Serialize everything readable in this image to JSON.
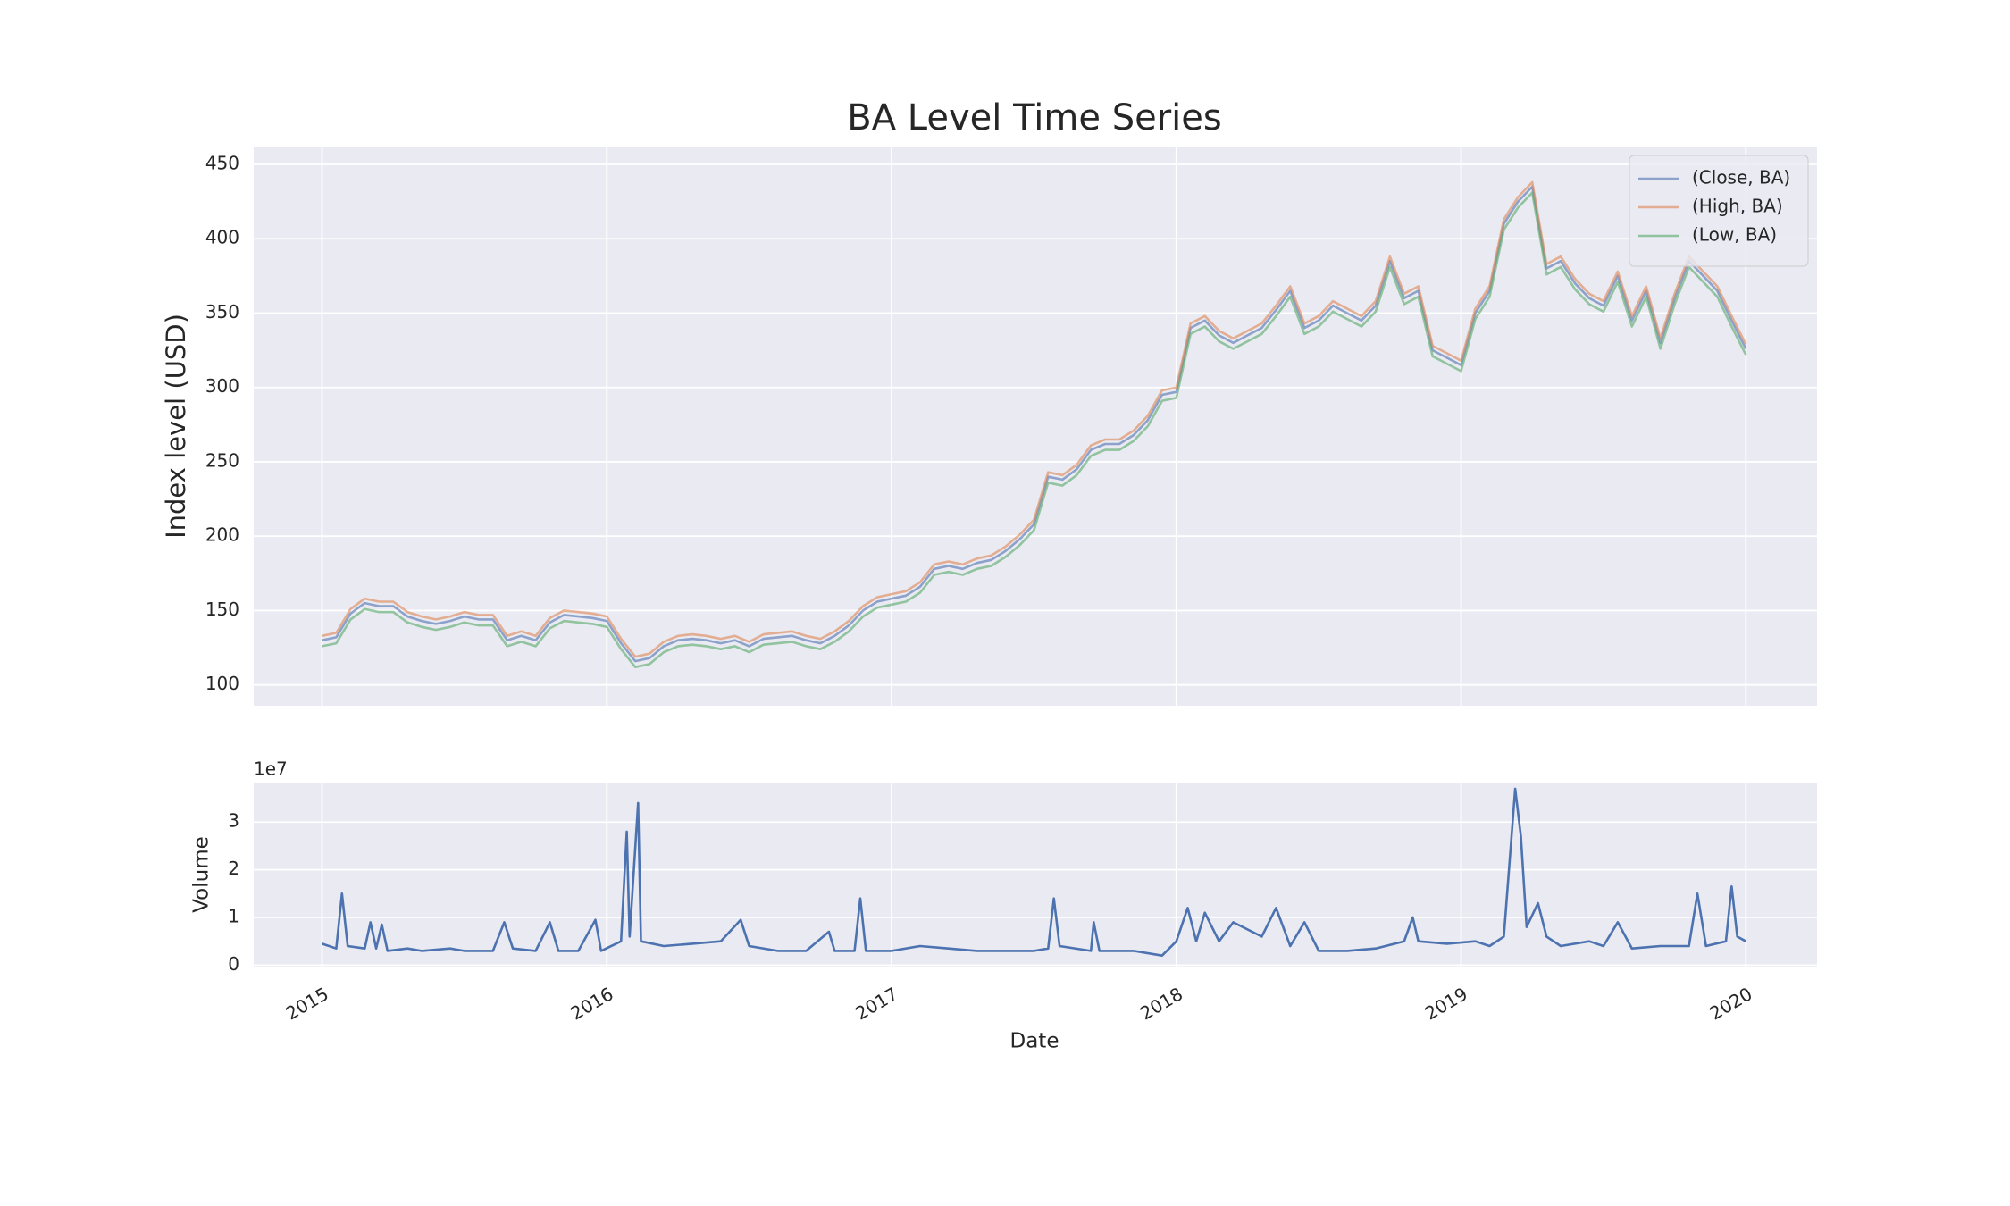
{
  "chart_data": [
    {
      "type": "line",
      "title": "BA Level Time Series",
      "ylabel": "Index level (USD)",
      "legend": "upper right",
      "grid": true,
      "alpha": 0.6,
      "xlim": [
        2014.76,
        2020.25
      ],
      "xticks": [
        2015,
        2016,
        2017,
        2018,
        2019,
        2020
      ],
      "show_xtick_labels": false,
      "ylim": [
        86,
        462
      ],
      "yticks": [
        100,
        150,
        200,
        250,
        300,
        350,
        400,
        450
      ],
      "x": [
        2015,
        2015.05,
        2015.1,
        2015.15,
        2015.2,
        2015.25,
        2015.3,
        2015.35,
        2015.4,
        2015.45,
        2015.5,
        2015.55,
        2015.6,
        2015.65,
        2015.7,
        2015.75,
        2015.8,
        2015.85,
        2015.9,
        2015.95,
        2016,
        2016.05,
        2016.1,
        2016.15,
        2016.2,
        2016.25,
        2016.3,
        2016.35,
        2016.4,
        2016.45,
        2016.5,
        2016.55,
        2016.6,
        2016.65,
        2016.7,
        2016.75,
        2016.8,
        2016.85,
        2016.9,
        2016.95,
        2017,
        2017.05,
        2017.1,
        2017.15,
        2017.2,
        2017.25,
        2017.3,
        2017.35,
        2017.4,
        2017.45,
        2017.5,
        2017.55,
        2017.6,
        2017.65,
        2017.7,
        2017.75,
        2017.8,
        2017.85,
        2017.9,
        2017.95,
        2018,
        2018.05,
        2018.1,
        2018.15,
        2018.2,
        2018.25,
        2018.3,
        2018.35,
        2018.4,
        2018.45,
        2018.5,
        2018.55,
        2018.6,
        2018.65,
        2018.7,
        2018.75,
        2018.8,
        2018.85,
        2018.9,
        2018.95,
        2019,
        2019.05,
        2019.1,
        2019.15,
        2019.2,
        2019.25,
        2019.3,
        2019.35,
        2019.4,
        2019.45,
        2019.5,
        2019.55,
        2019.6,
        2019.65,
        2019.7,
        2019.75,
        2019.8,
        2019.85,
        2019.9,
        2019.95,
        2020
      ],
      "series": [
        {
          "name": "(Close, BA)",
          "color": "#4c72b0",
          "values": [
            130,
            132,
            148,
            155,
            153,
            153,
            146,
            143,
            141,
            143,
            146,
            144,
            144,
            130,
            133,
            130,
            142,
            147,
            146,
            145,
            143,
            128,
            116,
            118,
            126,
            130,
            131,
            130,
            128,
            130,
            126,
            131,
            132,
            133,
            130,
            128,
            133,
            140,
            150,
            156,
            158,
            160,
            166,
            178,
            180,
            178,
            182,
            184,
            190,
            198,
            208,
            240,
            238,
            245,
            258,
            262,
            262,
            268,
            278,
            295,
            297,
            340,
            345,
            335,
            330,
            335,
            340,
            352,
            365,
            340,
            345,
            355,
            350,
            345,
            355,
            385,
            360,
            365,
            325,
            320,
            315,
            350,
            365,
            410,
            425,
            435,
            380,
            385,
            370,
            360,
            355,
            375,
            345,
            365,
            330,
            360,
            385,
            375,
            365,
            345,
            326
          ]
        },
        {
          "name": "(High, BA)",
          "color": "#dd8452",
          "values": [
            133,
            135,
            151,
            158,
            156,
            156,
            149,
            146,
            144,
            146,
            149,
            147,
            147,
            133,
            136,
            133,
            145,
            150,
            149,
            148,
            146,
            131,
            119,
            121,
            129,
            133,
            134,
            133,
            131,
            133,
            129,
            134,
            135,
            136,
            133,
            131,
            136,
            143,
            153,
            159,
            161,
            163,
            169,
            181,
            183,
            181,
            185,
            187,
            193,
            201,
            211,
            243,
            241,
            248,
            261,
            265,
            265,
            271,
            281,
            298,
            300,
            343,
            348,
            338,
            333,
            338,
            343,
            355,
            368,
            343,
            348,
            358,
            353,
            348,
            358,
            388,
            363,
            368,
            328,
            323,
            318,
            353,
            368,
            413,
            428,
            438,
            383,
            388,
            373,
            363,
            358,
            378,
            348,
            368,
            333,
            363,
            388,
            378,
            368,
            348,
            329
          ]
        },
        {
          "name": "(Low, BA)",
          "color": "#55a868",
          "values": [
            126,
            128,
            144,
            151,
            149,
            149,
            142,
            139,
            137,
            139,
            142,
            140,
            140,
            126,
            129,
            126,
            138,
            143,
            142,
            141,
            139,
            124,
            112,
            114,
            122,
            126,
            127,
            126,
            124,
            126,
            122,
            127,
            128,
            129,
            126,
            124,
            129,
            136,
            146,
            152,
            154,
            156,
            162,
            174,
            176,
            174,
            178,
            180,
            186,
            194,
            204,
            236,
            234,
            241,
            254,
            258,
            258,
            264,
            274,
            291,
            293,
            336,
            341,
            331,
            326,
            331,
            336,
            348,
            361,
            336,
            341,
            351,
            346,
            341,
            351,
            381,
            356,
            361,
            321,
            316,
            311,
            346,
            361,
            406,
            421,
            431,
            376,
            381,
            366,
            356,
            351,
            371,
            341,
            361,
            326,
            356,
            381,
            371,
            361,
            341,
            322
          ]
        }
      ]
    },
    {
      "type": "line",
      "ylabel": "Volume",
      "xlabel": "Date",
      "offset_label": "1e7",
      "grid": true,
      "color": "#4c72b0",
      "xlim": [
        2014.76,
        2020.25
      ],
      "xticks": [
        2015,
        2016,
        2017,
        2018,
        2019,
        2020
      ],
      "show_xtick_labels": true,
      "ylim": [
        -300000,
        38100000
      ],
      "yticks": [
        0,
        {
          "value": 10000000,
          "label": "1"
        },
        {
          "value": 20000000,
          "label": "2"
        },
        {
          "value": 30000000,
          "label": "3"
        }
      ],
      "x": [
        2015,
        2015.05,
        2015.07,
        2015.09,
        2015.15,
        2015.17,
        2015.19,
        2015.21,
        2015.23,
        2015.3,
        2015.35,
        2015.45,
        2015.5,
        2015.6,
        2015.64,
        2015.67,
        2015.75,
        2015.8,
        2015.83,
        2015.9,
        2015.96,
        2015.98,
        2016.05,
        2016.07,
        2016.08,
        2016.11,
        2016.12,
        2016.2,
        2016.3,
        2016.4,
        2016.47,
        2016.5,
        2016.6,
        2016.7,
        2016.78,
        2016.8,
        2016.87,
        2016.89,
        2016.91,
        2017,
        2017.1,
        2017.2,
        2017.3,
        2017.4,
        2017.5,
        2017.55,
        2017.57,
        2017.59,
        2017.7,
        2017.71,
        2017.73,
        2017.85,
        2017.95,
        2018,
        2018.04,
        2018.07,
        2018.1,
        2018.15,
        2018.2,
        2018.3,
        2018.35,
        2018.4,
        2018.45,
        2018.5,
        2018.6,
        2018.7,
        2018.8,
        2018.83,
        2018.85,
        2018.95,
        2019.05,
        2019.1,
        2019.15,
        2019.19,
        2019.21,
        2019.23,
        2019.27,
        2019.3,
        2019.35,
        2019.45,
        2019.5,
        2019.55,
        2019.6,
        2019.7,
        2019.8,
        2019.83,
        2019.86,
        2019.93,
        2019.95,
        2019.97,
        2020
      ],
      "values": [
        4500000,
        3500000,
        15000000,
        4000000,
        3500000,
        9000000,
        3500000,
        8500000,
        3000000,
        3500000,
        3000000,
        3500000,
        3000000,
        3000000,
        9000000,
        3500000,
        3000000,
        9000000,
        3000000,
        3000000,
        9500000,
        3000000,
        5000000,
        28000000,
        6000000,
        34000000,
        5000000,
        4000000,
        4500000,
        5000000,
        9500000,
        4000000,
        3000000,
        3000000,
        7000000,
        3000000,
        3000000,
        14000000,
        3000000,
        3000000,
        4000000,
        3500000,
        3000000,
        3000000,
        3000000,
        3500000,
        14000000,
        4000000,
        3000000,
        9000000,
        3000000,
        3000000,
        2000000,
        5000000,
        12000000,
        5000000,
        11000000,
        5000000,
        9000000,
        6000000,
        12000000,
        4000000,
        9000000,
        3000000,
        3000000,
        3500000,
        5000000,
        10000000,
        5000000,
        4500000,
        5000000,
        4000000,
        6000000,
        37000000,
        27000000,
        8000000,
        13000000,
        6000000,
        4000000,
        5000000,
        4000000,
        9000000,
        3500000,
        4000000,
        4000000,
        15000000,
        4000000,
        5000000,
        16500000,
        6000000,
        5000000
      ]
    }
  ]
}
